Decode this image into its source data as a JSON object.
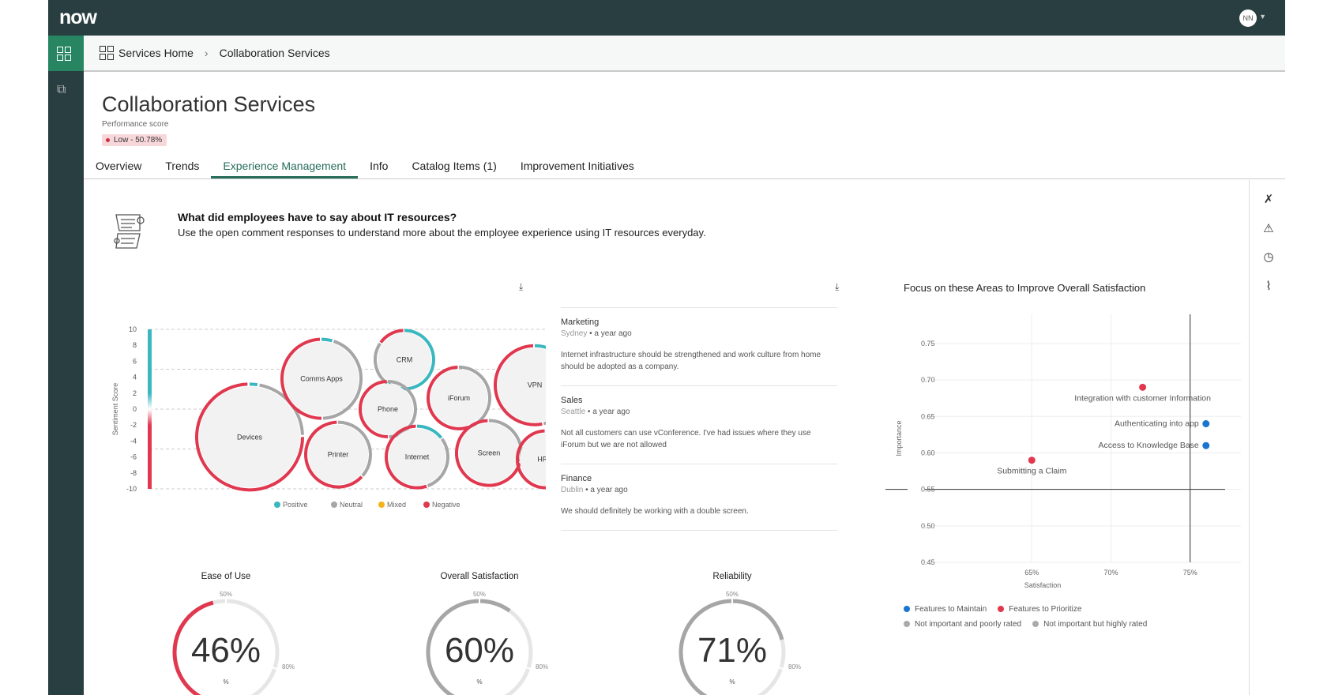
{
  "app": {
    "logo": "now",
    "user_initials": "NN"
  },
  "breadcrumb": [
    "Services Home",
    "Collaboration Services"
  ],
  "page": {
    "title": "Collaboration Services",
    "perf_label": "Performance score",
    "perf_badge": "Low - 50.78%",
    "badge_color": "#c8303f"
  },
  "tabs": [
    {
      "label": "Overview"
    },
    {
      "label": "Trends"
    },
    {
      "label": "Experience Management",
      "active": true
    },
    {
      "label": "Info"
    },
    {
      "label": "Catalog Items (1)"
    },
    {
      "label": "Improvement Initiatives"
    }
  ],
  "rail_icons": [
    "connect-icon",
    "warning-icon",
    "history-icon",
    "attachment-icon"
  ],
  "header": {
    "question": "What did employees have to say about IT resources?",
    "description": "Use the open comment responses to understand more about the employee experience using IT resources everyday."
  },
  "colors": {
    "positive": "#3bb7bf",
    "neutral": "#a6a6a6",
    "mixed": "#f5b31a",
    "negative": "#e0384f",
    "maintain": "#1a75cf",
    "prioritize": "#e0384f"
  },
  "chart_data": [
    {
      "type": "bubble",
      "ylabel": "Sentiment Score",
      "ylim": [
        -10,
        10
      ],
      "yticks": [
        10,
        8,
        6,
        4,
        2,
        0,
        -2,
        -4,
        -6,
        -8,
        -10
      ],
      "legend": [
        "Positive",
        "Neutral",
        "Mixed",
        "Negative"
      ],
      "bubbles": [
        {
          "name": "Devices",
          "score": -3.5,
          "positive": 0.03,
          "neutral": 0.22,
          "negative": 0.75
        },
        {
          "name": "Comms Apps",
          "score": 3.8,
          "positive": 0.05,
          "neutral": 0.45,
          "negative": 0.5
        },
        {
          "name": "CRM",
          "score": 6.2,
          "positive": 0.6,
          "neutral": 0.25,
          "negative": 0.15
        },
        {
          "name": "Phone",
          "score": 0,
          "positive": 0,
          "neutral": 0.5,
          "negative": 0.5
        },
        {
          "name": "iForum",
          "score": 1.4,
          "positive": 0,
          "neutral": 0.45,
          "negative": 0.55
        },
        {
          "name": "VPN",
          "score": 3,
          "positive": 0.27,
          "neutral": 0.2,
          "negative": 0.53
        },
        {
          "name": "Printer",
          "score": -5.7,
          "positive": 0,
          "neutral": 0.37,
          "negative": 0.63
        },
        {
          "name": "Internet",
          "score": -6,
          "positive": 0.15,
          "neutral": 0.3,
          "negative": 0.55
        },
        {
          "name": "Screen",
          "score": -5.5,
          "positive": 0,
          "neutral": 0.3,
          "negative": 0.7
        },
        {
          "name": "HRIS",
          "score": -6.3,
          "positive": 0.05,
          "neutral": 0.2,
          "negative": 0.75
        }
      ]
    },
    {
      "type": "scatter",
      "title": "Focus on these Areas to Improve Overall Satisfaction",
      "xlabel": "Satisfaction",
      "ylabel": "Importance",
      "xticks": [
        "65%",
        "70%",
        "75%"
      ],
      "xtick_values": [
        65,
        70,
        75
      ],
      "yticks": [
        "0.75",
        "0.70",
        "0.65",
        "0.60",
        "0.55",
        "0.50",
        "0.45"
      ],
      "xlim": [
        59.4,
        80.3
      ],
      "ylim": [
        0.45,
        0.79
      ],
      "quadrant_lines": {
        "x": 75,
        "y": 0.55
      },
      "points": [
        {
          "label": "Integration with customer Information",
          "x": 72,
          "y": 0.69,
          "group": "prioritize"
        },
        {
          "label": "Authenticating into app",
          "x": 76,
          "y": 0.64,
          "group": "maintain"
        },
        {
          "label": "Access to Knowledge Base",
          "x": 76,
          "y": 0.61,
          "group": "maintain"
        },
        {
          "label": "Submitting a Claim",
          "x": 65,
          "y": 0.59,
          "group": "prioritize"
        }
      ],
      "legend": [
        "Features to Maintain",
        "Features to Prioritize",
        "Not important and poorly rated",
        "Not important but highly rated"
      ]
    },
    {
      "type": "gauge",
      "gauges": [
        {
          "label": "Ease of Use",
          "value": 46,
          "display": "46%",
          "unit": "%",
          "color": "#e0384f"
        },
        {
          "label": "Overall Satisfaction",
          "value": 60,
          "display": "60%",
          "unit": "%",
          "color": "#a6a6a6"
        },
        {
          "label": "Reliability",
          "value": 71,
          "display": "71%",
          "unit": "%",
          "color": "#a6a6a6"
        }
      ],
      "marks": [
        "50%",
        "80%"
      ]
    }
  ],
  "comments": [
    {
      "dept": "Marketing",
      "location": "Sydney",
      "time": "a year ago",
      "text": "Internet infrastructure should be strengthened and work culture from home should be adopted as a company."
    },
    {
      "dept": "Sales",
      "location": "Seattle",
      "time": "a year ago",
      "text": "Not all customers can use vConference. I've had issues where they use iForum but we are not allowed"
    },
    {
      "dept": "Finance",
      "location": "Dublin",
      "time": "a year ago",
      "text": "We should definitely be working with a double screen."
    }
  ]
}
